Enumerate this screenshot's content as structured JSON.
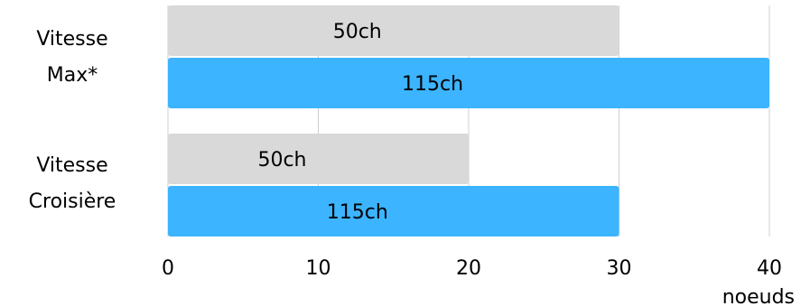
{
  "chart_data": {
    "type": "bar",
    "orientation": "horizontal",
    "categories": [
      "Vitesse Max*",
      "Vitesse Croisière"
    ],
    "category_label_lines": [
      [
        "Vitesse",
        "Max*"
      ],
      [
        "Vitesse",
        "Croisière"
      ]
    ],
    "series": [
      {
        "name": "50ch",
        "values": [
          30,
          20
        ],
        "color": "#d9d9d9"
      },
      {
        "name": "115ch",
        "values": [
          40,
          30
        ],
        "color": "#3cb4ff"
      }
    ],
    "xlim": [
      0,
      40
    ],
    "xticks": [
      0,
      10,
      20,
      30,
      40
    ],
    "xlabel": "noeuds",
    "grid": true
  }
}
